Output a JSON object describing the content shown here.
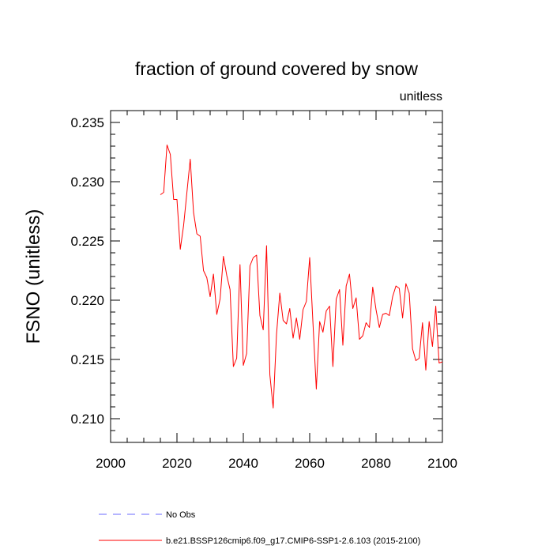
{
  "chart_data": {
    "type": "line",
    "title": "fraction of ground covered by snow",
    "units_label": "unitless",
    "ylabel": "FSNO  (unitless)",
    "xlabel": "",
    "xlim": [
      2000,
      2100
    ],
    "ylim": [
      0.208,
      0.236
    ],
    "x_ticks": [
      2000,
      2020,
      2040,
      2060,
      2080,
      2100
    ],
    "x_tick_labels": [
      "2000",
      "2020",
      "2040",
      "2060",
      "2080",
      "2100"
    ],
    "y_ticks": [
      0.21,
      0.215,
      0.22,
      0.225,
      0.23,
      0.235
    ],
    "y_tick_labels": [
      "0.210",
      "0.215",
      "0.220",
      "0.225",
      "0.230",
      "0.235"
    ],
    "grid": false,
    "legend_position": "bottom",
    "series": [
      {
        "name": "No Obs",
        "color": "#6b6bff",
        "style": "dashed",
        "x": [],
        "values": []
      },
      {
        "name": "b.e21.BSSP126cmip6.f09_g17.CMIP6-SSP1-2.6.103 (2015-2100)",
        "color": "#ff0000",
        "style": "solid",
        "x": [
          2015,
          2016,
          2017,
          2018,
          2019,
          2020,
          2021,
          2022,
          2023,
          2024,
          2025,
          2026,
          2027,
          2028,
          2029,
          2030,
          2031,
          2032,
          2033,
          2034,
          2035,
          2036,
          2037,
          2038,
          2039,
          2040,
          2041,
          2042,
          2043,
          2044,
          2045,
          2046,
          2047,
          2048,
          2049,
          2050,
          2051,
          2052,
          2053,
          2054,
          2055,
          2056,
          2057,
          2058,
          2059,
          2060,
          2061,
          2062,
          2063,
          2064,
          2065,
          2066,
          2067,
          2068,
          2069,
          2070,
          2071,
          2072,
          2073,
          2074,
          2075,
          2076,
          2077,
          2078,
          2079,
          2080,
          2081,
          2082,
          2083,
          2084,
          2085,
          2086,
          2087,
          2088,
          2089,
          2090,
          2091,
          2092,
          2093,
          2094,
          2095,
          2096,
          2097,
          2098,
          2099,
          2100
        ],
        "values": [
          0.2289,
          0.2291,
          0.2331,
          0.2323,
          0.2285,
          0.2285,
          0.2243,
          0.2263,
          0.2291,
          0.2319,
          0.2274,
          0.2256,
          0.2254,
          0.2225,
          0.2219,
          0.2203,
          0.2222,
          0.2188,
          0.2201,
          0.2237,
          0.2221,
          0.2209,
          0.2144,
          0.2151,
          0.223,
          0.2145,
          0.2155,
          0.2229,
          0.2236,
          0.2238,
          0.2187,
          0.2175,
          0.2246,
          0.2137,
          0.2109,
          0.2171,
          0.2206,
          0.2183,
          0.218,
          0.2193,
          0.2168,
          0.2185,
          0.2167,
          0.2192,
          0.2199,
          0.2236,
          0.218,
          0.2125,
          0.2182,
          0.2173,
          0.2191,
          0.2195,
          0.2144,
          0.2201,
          0.2209,
          0.2162,
          0.2212,
          0.2222,
          0.2193,
          0.2202,
          0.2167,
          0.217,
          0.2181,
          0.2177,
          0.2211,
          0.2192,
          0.2177,
          0.2188,
          0.2189,
          0.2187,
          0.2203,
          0.2212,
          0.221,
          0.2185,
          0.2214,
          0.2206,
          0.2159,
          0.2149,
          0.2151,
          0.2181,
          0.2141,
          0.2182,
          0.2161,
          0.2195,
          0.2147,
          0.2148
        ]
      }
    ]
  }
}
